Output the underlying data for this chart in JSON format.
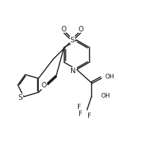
{
  "bg_color": "#ffffff",
  "line_color": "#1a1a1a",
  "line_width": 1.1,
  "font_size": 6.5,
  "fig_width": 2.18,
  "fig_height": 2.08,
  "dpi": 100,
  "xlim": [
    0,
    10
  ],
  "ylim": [
    0,
    9.5
  ]
}
